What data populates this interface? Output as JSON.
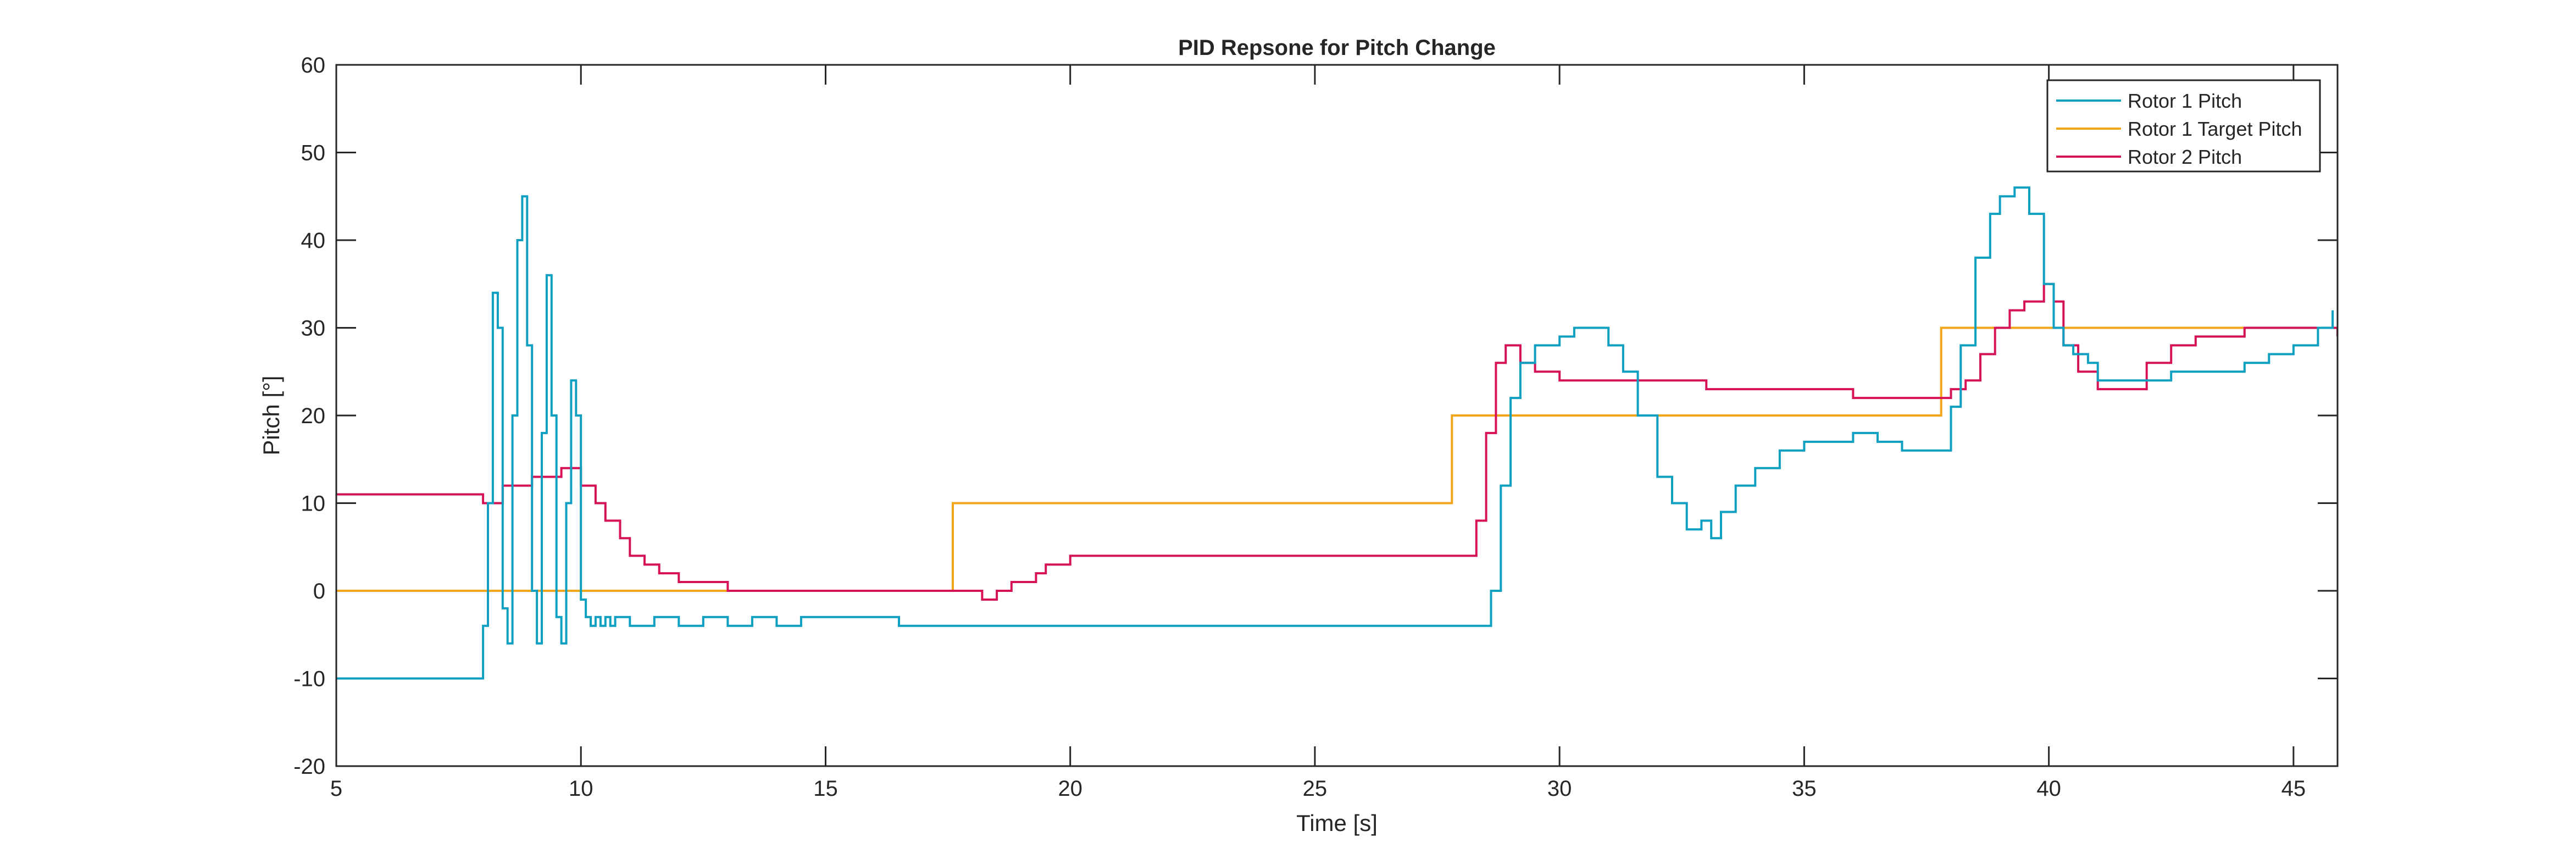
{
  "chart_data": {
    "type": "line",
    "title": "PID Repsone for Pitch Change",
    "xlabel": "Time [s]",
    "ylabel": "Pitch [°]",
    "xlim": [
      5,
      45.9
    ],
    "ylim": [
      -20,
      60
    ],
    "xticks": [
      5,
      10,
      15,
      20,
      25,
      30,
      35,
      40,
      45
    ],
    "yticks": [
      -20,
      -10,
      0,
      10,
      20,
      30,
      40,
      50,
      60
    ],
    "grid": false,
    "legend_position": "top-right",
    "series": [
      {
        "name": "Rotor 1 Pitch",
        "color": "#0f9fc0",
        "x": [
          5.0,
          7.8,
          8.0,
          8.1,
          8.2,
          8.3,
          8.4,
          8.5,
          8.6,
          8.7,
          8.8,
          8.9,
          9.0,
          9.1,
          9.2,
          9.3,
          9.4,
          9.5,
          9.6,
          9.7,
          9.8,
          9.9,
          10.0,
          10.1,
          10.2,
          10.3,
          10.4,
          10.5,
          10.6,
          10.7,
          11.0,
          11.5,
          12.0,
          12.5,
          13.0,
          13.5,
          14.0,
          14.5,
          15.0,
          15.5,
          16.0,
          16.5,
          17.0,
          17.5,
          18.0,
          18.5,
          19.0,
          20.0,
          21.0,
          22.0,
          23.0,
          24.0,
          25.0,
          26.0,
          27.0,
          28.0,
          28.3,
          28.6,
          28.8,
          29.0,
          29.2,
          29.5,
          30.0,
          30.3,
          30.6,
          31.0,
          31.3,
          31.6,
          32.0,
          32.3,
          32.6,
          32.9,
          33.1,
          33.3,
          33.6,
          34.0,
          34.5,
          35.0,
          35.5,
          36.0,
          36.5,
          37.0,
          37.5,
          37.8,
          38.0,
          38.2,
          38.5,
          38.8,
          39.0,
          39.3,
          39.6,
          39.9,
          40.1,
          40.3,
          40.5,
          40.8,
          41.0,
          41.5,
          42.0,
          42.5,
          43.0,
          43.5,
          44.0,
          44.5,
          45.0,
          45.5,
          45.8
        ],
        "y": [
          -10,
          -10,
          -4,
          10,
          34,
          30,
          -2,
          -6,
          20,
          40,
          45,
          28,
          0,
          -6,
          18,
          36,
          20,
          -3,
          -6,
          10,
          24,
          20,
          -1,
          -3,
          -4,
          -3,
          -4,
          -3,
          -4,
          -3,
          -4,
          -3,
          -4,
          -3,
          -4,
          -3,
          -4,
          -3,
          -3,
          -3,
          -3,
          -4,
          -4,
          -4,
          -4,
          -4,
          -4,
          -4,
          -4,
          -4,
          -4,
          -4,
          -4,
          -4,
          -4,
          -4,
          -4,
          0,
          12,
          22,
          26,
          28,
          29,
          30,
          30,
          28,
          25,
          20,
          13,
          10,
          7,
          8,
          6,
          9,
          12,
          14,
          16,
          17,
          17,
          18,
          17,
          16,
          16,
          16,
          21,
          28,
          38,
          43,
          45,
          46,
          43,
          35,
          30,
          28,
          27,
          26,
          24,
          24,
          24,
          25,
          25,
          25,
          26,
          27,
          28,
          30,
          32
        ]
      },
      {
        "name": "Rotor 1 Target Pitch",
        "color": "#f2a71b",
        "x": [
          5.0,
          17.6,
          17.6,
          27.8,
          27.8,
          37.8,
          37.8,
          45.9
        ],
        "y": [
          0,
          0,
          10,
          10,
          20,
          20,
          30,
          30
        ]
      },
      {
        "name": "Rotor 2 Pitch",
        "color": "#d51257",
        "x": [
          5.0,
          8.0,
          8.0,
          8.4,
          8.4,
          9.0,
          9.0,
          9.6,
          9.6,
          10.0,
          10.0,
          10.3,
          10.5,
          10.8,
          11.0,
          11.3,
          11.6,
          12.0,
          12.8,
          13.0,
          17.5,
          18.0,
          18.2,
          18.5,
          18.8,
          19.0,
          19.3,
          19.5,
          19.8,
          20.0,
          20.5,
          22.0,
          24.0,
          26.0,
          27.5,
          28.0,
          28.3,
          28.5,
          28.7,
          28.9,
          29.2,
          29.5,
          30.0,
          31.0,
          32.0,
          33.0,
          34.0,
          35.0,
          36.0,
          37.0,
          37.8,
          38.0,
          38.3,
          38.6,
          38.9,
          39.2,
          39.5,
          39.9,
          40.1,
          40.3,
          40.6,
          41.0,
          41.5,
          42.0,
          42.5,
          43.0,
          43.5,
          44.0,
          44.5,
          45.0,
          45.5,
          45.9
        ],
        "y": [
          11,
          11,
          10,
          10,
          12,
          12,
          13,
          13,
          14,
          14,
          12,
          10,
          8,
          6,
          4,
          3,
          2,
          1,
          1,
          0,
          0,
          0,
          -1,
          0,
          1,
          1,
          2,
          3,
          3,
          4,
          4,
          4,
          4,
          4,
          4,
          4,
          8,
          18,
          26,
          28,
          26,
          25,
          24,
          24,
          24,
          23,
          23,
          23,
          22,
          22,
          22,
          23,
          24,
          27,
          30,
          32,
          33,
          35,
          33,
          28,
          25,
          23,
          23,
          26,
          28,
          29,
          29,
          30,
          30,
          30,
          30,
          29
        ]
      }
    ]
  }
}
